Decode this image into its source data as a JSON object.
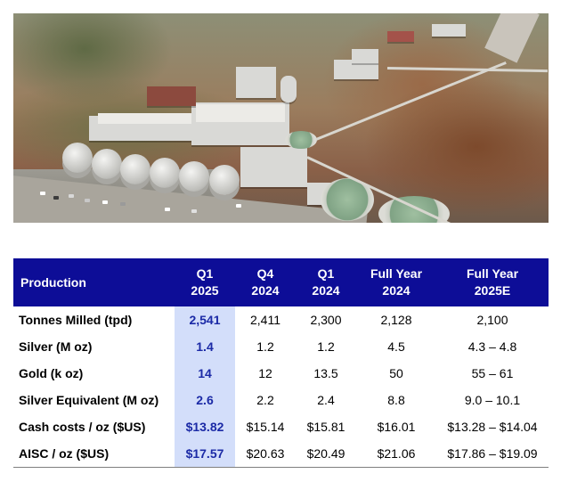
{
  "table": {
    "headers": [
      {
        "line1": "Production",
        "line2": ""
      },
      {
        "line1": "Q1",
        "line2": "2025"
      },
      {
        "line1": "Q4",
        "line2": "2024"
      },
      {
        "line1": "Q1",
        "line2": "2024"
      },
      {
        "line1": "Full Year",
        "line2": "2024"
      },
      {
        "line1": "Full Year",
        "line2": "2025E"
      }
    ],
    "rows": [
      {
        "label": "Tonnes Milled (tpd)",
        "values": [
          "2,541",
          "2,411",
          "2,300",
          "2,128",
          "2,100"
        ]
      },
      {
        "label": "Silver (M oz)",
        "values": [
          "1.4",
          "1.2",
          "1.2",
          "4.5",
          "4.3 – 4.8"
        ]
      },
      {
        "label": "Gold (k oz)",
        "values": [
          "14",
          "12",
          "13.5",
          "50",
          "55 – 61"
        ]
      },
      {
        "label": "Silver Equivalent (M oz)",
        "values": [
          "2.6",
          "2.2",
          "2.4",
          "8.8",
          "9.0 – 10.1"
        ]
      },
      {
        "label": "Cash costs / oz ($US)",
        "values": [
          "$13.82",
          "$15.14",
          "$15.81",
          "$16.01",
          "$13.28 – $14.04"
        ]
      },
      {
        "label": "AISC / oz ($US)",
        "values": [
          "$17.57",
          "$20.63",
          "$20.49",
          "$21.06",
          "$17.86 – $19.09"
        ]
      }
    ]
  },
  "colors": {
    "header_bg": "#0d0d97",
    "highlight_bg": "#d3defa",
    "highlight_text": "#1b2aa6"
  }
}
